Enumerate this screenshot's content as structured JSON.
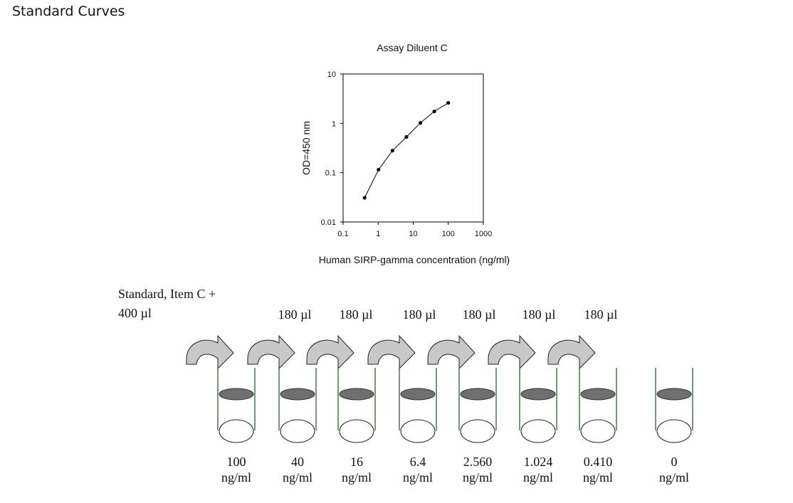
{
  "page": {
    "heading": "Standard Curves"
  },
  "chart_data": {
    "type": "line",
    "title": "Assay Diluent C",
    "xlabel": "Human SIRP-gamma concentration (ng/ml)",
    "ylabel": "OD=450 nm",
    "xscale": "log",
    "yscale": "log",
    "xlim": [
      0.1,
      1000
    ],
    "ylim": [
      0.01,
      10
    ],
    "xticks": [
      "0.1",
      "1",
      "10",
      "100",
      "1000"
    ],
    "yticks": [
      "0.01",
      "0.1",
      "1",
      "10"
    ],
    "grid": false,
    "series": [
      {
        "x": [
          0.41,
          1.024,
          2.56,
          6.4,
          16,
          40,
          100
        ],
        "y": [
          0.031,
          0.115,
          0.28,
          0.53,
          1.02,
          1.75,
          2.6
        ]
      }
    ]
  },
  "dilution": {
    "stock_label_line1": "Standard, Item C +",
    "stock_label_line2": "400 µl",
    "transfer_volumes": [
      "180 µl",
      "180 µl",
      "180 µl",
      "180 µl",
      "180 µl",
      "180 µl"
    ],
    "tubes": [
      {
        "value": "100",
        "unit": "ng/ml"
      },
      {
        "value": "40",
        "unit": "ng/ml"
      },
      {
        "value": "16",
        "unit": "ng/ml"
      },
      {
        "value": "6.4",
        "unit": "ng/ml"
      },
      {
        "value": "2.560",
        "unit": "ng/ml"
      },
      {
        "value": "1.024",
        "unit": "ng/ml"
      },
      {
        "value": "0.410",
        "unit": "ng/ml"
      },
      {
        "value": "0",
        "unit": "ng/ml"
      }
    ]
  }
}
